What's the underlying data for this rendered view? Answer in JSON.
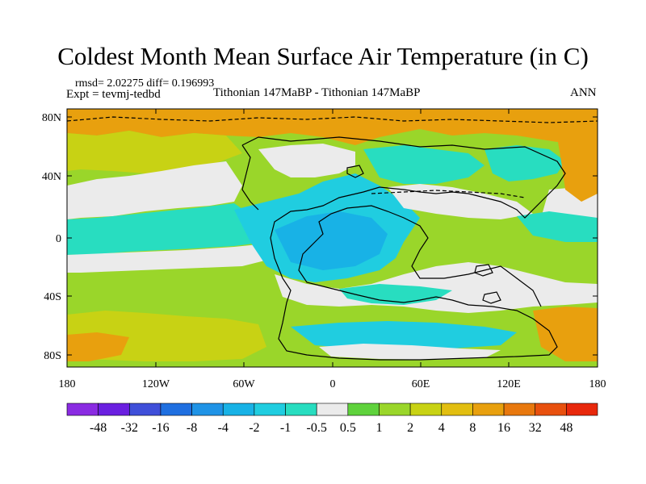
{
  "header": {
    "title": "Coldest Month Mean Surface Air Temperature (in C)",
    "stats": "rmsd= 2.02275 diff= 0.196993",
    "experiment": "Expt = tevmj-tedbd",
    "subtitle": "Tithonian 147MaBP - Tithonian 147MaBP",
    "season": "ANN"
  },
  "axes": {
    "lat_labels": [
      "80N",
      "40N",
      "0",
      "40S",
      "80S"
    ],
    "lon_labels": [
      "180",
      "120W",
      "60W",
      "0",
      "60E",
      "120E",
      "180"
    ]
  },
  "colorbar": {
    "colors": [
      "#8a2be2",
      "#6a1fe0",
      "#3f4fd9",
      "#1f6fe0",
      "#1f93e6",
      "#18b2e6",
      "#20cde0",
      "#28ddc0",
      "#ebebeb",
      "#5fd23c",
      "#9ad62a",
      "#c8d214",
      "#e2be10",
      "#e8a00e",
      "#e8780e",
      "#e8500e",
      "#e8280c"
    ],
    "labels": [
      "-48",
      "-32",
      "-16",
      "-8",
      "-4",
      "-2",
      "-1",
      "-0.5",
      "0.5",
      "1",
      "2",
      "4",
      "8",
      "16",
      "32",
      "48"
    ]
  },
  "field_colors": {
    "white": "#ebebeb",
    "cyan": "#28ddc0",
    "light_blue": "#20cde0",
    "blue": "#18b2e6",
    "green": "#9ad62a",
    "yellow_green": "#c8d214",
    "orange": "#e8a00e",
    "coast": "#000000"
  }
}
